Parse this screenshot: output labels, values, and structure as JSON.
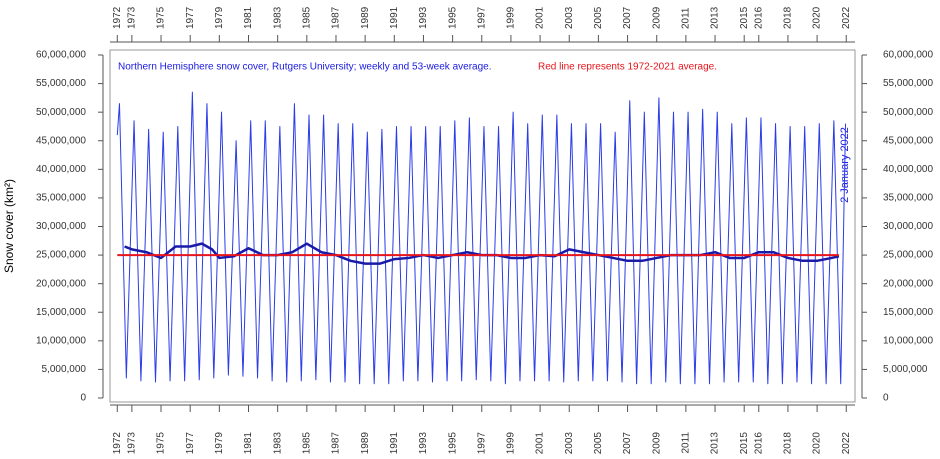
{
  "chart_data": {
    "type": "line",
    "title": "Northern Hemisphere snow cover, Rutgers University; weekly and 53-week average.",
    "subtitle": "Red line represents 1972-2021 average.",
    "annotation": "2 January 2022",
    "ylabel": "Snow cover (km²)",
    "xlim": [
      1971.5,
      2022.6
    ],
    "ylim": [
      0,
      60000000
    ],
    "xticks": [
      1972,
      1973,
      1975,
      1977,
      1979,
      1981,
      1983,
      1985,
      1987,
      1989,
      1991,
      1993,
      1995,
      1997,
      1999,
      2001,
      2003,
      2005,
      2007,
      2009,
      2011,
      2013,
      2015,
      2016,
      2018,
      2020,
      2022
    ],
    "yticks": [
      {
        "value": 0,
        "label": "0"
      },
      {
        "value": 5000000,
        "label": "5,000,000"
      },
      {
        "value": 10000000,
        "label": "10,000,000"
      },
      {
        "value": 15000000,
        "label": "15,000,000"
      },
      {
        "value": 20000000,
        "label": "20,000,000"
      },
      {
        "value": 25000000,
        "label": "25,000,000"
      },
      {
        "value": 30000000,
        "label": "30,000,000"
      },
      {
        "value": 35000000,
        "label": "35,000,000"
      },
      {
        "value": 40000000,
        "label": "40,000,000"
      },
      {
        "value": 45000000,
        "label": "45,000,000"
      },
      {
        "value": 50000000,
        "label": "50,000,000"
      },
      {
        "value": 55000000,
        "label": "55,000,000"
      },
      {
        "value": 60000000,
        "label": "60,000,000"
      }
    ],
    "series": [
      {
        "color": "#2b3ce8",
        "width": 1,
        "x": [
          1972.0,
          1972.15,
          1972.62,
          1973.15,
          1973.62,
          1974.15,
          1974.62,
          1975.15,
          1975.62,
          1976.15,
          1976.62,
          1977.15,
          1977.62,
          1978.15,
          1978.62,
          1979.15,
          1979.62,
          1980.15,
          1980.62,
          1981.15,
          1981.62,
          1982.15,
          1982.62,
          1983.15,
          1983.62,
          1984.15,
          1984.62,
          1985.15,
          1985.62,
          1986.15,
          1986.62,
          1987.15,
          1987.62,
          1988.15,
          1988.62,
          1989.15,
          1989.62,
          1990.15,
          1990.62,
          1991.15,
          1991.62,
          1992.15,
          1992.62,
          1993.15,
          1993.62,
          1994.15,
          1994.62,
          1995.15,
          1995.62,
          1996.15,
          1996.62,
          1997.15,
          1997.62,
          1998.15,
          1998.62,
          1999.15,
          1999.62,
          2000.15,
          2000.62,
          2001.15,
          2001.62,
          2002.15,
          2002.62,
          2003.15,
          2003.62,
          2004.15,
          2004.62,
          2005.15,
          2005.62,
          2006.15,
          2006.62,
          2007.15,
          2007.62,
          2008.15,
          2008.62,
          2009.15,
          2009.62,
          2010.15,
          2010.62,
          2011.15,
          2011.62,
          2012.15,
          2012.62,
          2013.15,
          2013.62,
          2014.15,
          2014.62,
          2015.15,
          2015.62,
          2016.15,
          2016.62,
          2017.15,
          2017.62,
          2018.15,
          2018.62,
          2019.15,
          2019.62,
          2020.15,
          2020.62,
          2021.15,
          2021.62,
          2021.95
        ],
        "values": [
          46000000,
          51500000,
          3500000,
          48500000,
          3000000,
          47000000,
          2800000,
          46500000,
          3000000,
          47500000,
          3000000,
          53500000,
          3200000,
          51500000,
          3500000,
          50000000,
          4000000,
          45000000,
          3800000,
          48500000,
          3500000,
          48500000,
          3000000,
          47500000,
          2800000,
          51500000,
          3000000,
          49500000,
          3200000,
          49500000,
          2800000,
          48000000,
          2800000,
          48000000,
          2500000,
          46500000,
          2500000,
          47000000,
          2500000,
          47500000,
          3000000,
          47500000,
          3000000,
          47500000,
          2800000,
          47500000,
          3000000,
          48500000,
          3000000,
          49000000,
          3200000,
          47500000,
          3000000,
          47500000,
          2500000,
          50000000,
          3000000,
          48000000,
          3000000,
          49500000,
          3000000,
          49500000,
          2800000,
          48000000,
          3000000,
          48000000,
          3000000,
          48000000,
          3000000,
          46500000,
          2800000,
          52000000,
          2500000,
          50000000,
          2500000,
          52500000,
          2800000,
          50000000,
          2500000,
          50000000,
          2500000,
          50500000,
          2500000,
          50000000,
          2800000,
          48000000,
          2800000,
          49000000,
          2800000,
          49000000,
          2500000,
          48000000,
          2500000,
          47500000,
          2800000,
          47500000,
          2500000,
          48000000,
          2500000,
          48500000,
          2500000,
          48000000
        ]
      },
      {
        "color": "#1a1aa8",
        "width": 2.5,
        "x": [
          1972.5,
          1973,
          1974,
          1975,
          1976,
          1977,
          1977.8,
          1978.5,
          1979,
          1980,
          1981,
          1982,
          1983,
          1984,
          1985,
          1986,
          1987,
          1988,
          1989,
          1990,
          1991,
          1992,
          1993,
          1994,
          1995,
          1996,
          1997,
          1998,
          1999,
          2000,
          2001,
          2002,
          2003,
          2004,
          2005,
          2006,
          2007,
          2008,
          2009,
          2010,
          2011,
          2012,
          2013,
          2014,
          2015,
          2016,
          2017,
          2018,
          2019,
          2020,
          2021,
          2021.5
        ],
        "values": [
          26500000,
          26000000,
          25500000,
          24500000,
          26500000,
          26500000,
          27000000,
          26000000,
          24500000,
          24800000,
          26200000,
          25000000,
          25000000,
          25500000,
          27000000,
          25500000,
          25000000,
          24000000,
          23500000,
          23500000,
          24300000,
          24500000,
          25000000,
          24500000,
          25000000,
          25500000,
          25000000,
          25000000,
          24500000,
          24500000,
          25000000,
          24800000,
          26000000,
          25500000,
          25000000,
          24500000,
          24000000,
          24000000,
          24500000,
          25000000,
          25000000,
          25000000,
          25500000,
          24500000,
          24500000,
          25500000,
          25500000,
          24500000,
          24000000,
          24000000,
          24500000,
          24800000
        ]
      },
      {
        "color": "#e8141b",
        "width": 2,
        "x": [
          1972,
          2021.5
        ],
        "values": [
          25000000,
          25000000
        ]
      }
    ]
  }
}
